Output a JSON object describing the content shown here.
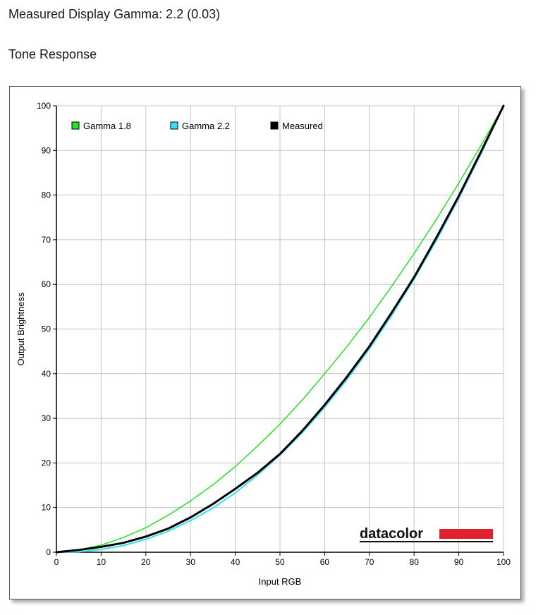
{
  "header": {
    "gamma_text": "Measured Display Gamma: 2.2 (0.03)",
    "section_title": "Tone Response"
  },
  "logo": {
    "text": "datacolor"
  },
  "chart_data": {
    "type": "line",
    "title": "",
    "xlabel": "Input RGB",
    "ylabel": "Output Brightness",
    "xlim": [
      0,
      100
    ],
    "ylim": [
      0,
      100
    ],
    "xticks": [
      0,
      10,
      20,
      30,
      40,
      50,
      60,
      70,
      80,
      90,
      100
    ],
    "yticks": [
      0,
      10,
      20,
      30,
      40,
      50,
      60,
      70,
      80,
      90,
      100
    ],
    "grid": true,
    "legend_position": "top-left",
    "series": [
      {
        "name": "Gamma 1.8",
        "color": "#22e322",
        "x": [
          0,
          5,
          10,
          15,
          20,
          25,
          30,
          35,
          40,
          45,
          50,
          55,
          60,
          65,
          70,
          75,
          80,
          85,
          90,
          95,
          100
        ],
        "y": [
          0,
          0.5,
          1.6,
          3.3,
          5.5,
          8.3,
          11.5,
          15.1,
          19.2,
          23.8,
          28.7,
          34.1,
          40.0,
          46.1,
          52.6,
          59.6,
          66.9,
          74.6,
          82.7,
          91.2,
          100
        ]
      },
      {
        "name": "Gamma 2.2",
        "color": "#36e0f0",
        "x": [
          0,
          5,
          10,
          15,
          20,
          25,
          30,
          35,
          40,
          45,
          50,
          55,
          60,
          65,
          70,
          75,
          80,
          85,
          90,
          95,
          100
        ],
        "y": [
          0,
          0.1,
          0.6,
          1.5,
          2.9,
          4.7,
          7.1,
          9.9,
          13.3,
          17.3,
          21.8,
          26.8,
          32.5,
          38.7,
          45.6,
          53.1,
          61.2,
          69.9,
          79.3,
          89.3,
          100
        ]
      },
      {
        "name": "Measured",
        "color": "#000000",
        "x": [
          0,
          5,
          10,
          15,
          20,
          25,
          30,
          35,
          40,
          45,
          50,
          55,
          60,
          65,
          70,
          75,
          80,
          85,
          90,
          95,
          100
        ],
        "y": [
          0,
          0.5,
          1.2,
          2.1,
          3.5,
          5.3,
          7.8,
          10.8,
          14.2,
          17.8,
          22.0,
          27.2,
          33.0,
          39.3,
          46.1,
          53.7,
          61.6,
          70.5,
          79.8,
          89.8,
          100
        ]
      }
    ]
  }
}
